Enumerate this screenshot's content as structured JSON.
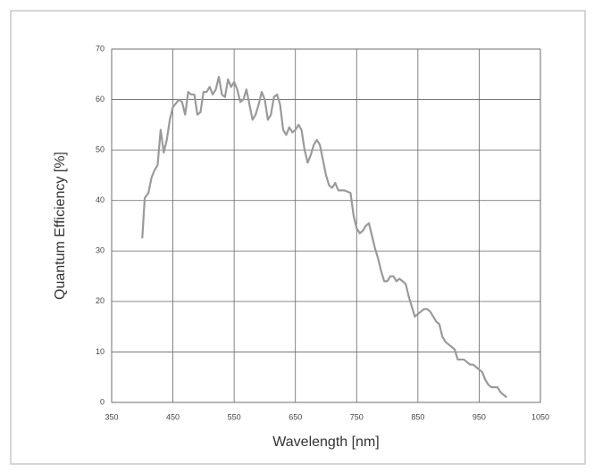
{
  "chart_data": {
    "type": "line",
    "xlabel": "Wavelength [nm]",
    "ylabel": "Quantum Efficiency [%]",
    "xlim": [
      350,
      1050
    ],
    "xticks": [
      350,
      450,
      550,
      650,
      750,
      850,
      950,
      1050
    ],
    "ylim": [
      0,
      70
    ],
    "yticks": [
      0,
      10,
      20,
      30,
      40,
      50,
      60,
      70
    ],
    "grid": true,
    "series": [
      {
        "color": "#9a9a9a",
        "x": [
          400,
          404,
          410,
          415,
          420,
          425,
          430,
          435,
          440,
          445,
          450,
          460,
          465,
          470,
          475,
          480,
          485,
          490,
          495,
          500,
          505,
          510,
          515,
          520,
          525,
          530,
          535,
          540,
          545,
          550,
          555,
          560,
          565,
          570,
          575,
          580,
          585,
          590,
          595,
          600,
          605,
          610,
          615,
          620,
          625,
          630,
          635,
          640,
          645,
          650,
          655,
          660,
          665,
          670,
          675,
          680,
          685,
          690,
          695,
          700,
          705,
          710,
          715,
          720,
          730,
          740,
          745,
          750,
          755,
          760,
          765,
          770,
          775,
          780,
          785,
          790,
          795,
          800,
          805,
          810,
          815,
          820,
          825,
          830,
          835,
          840,
          845,
          850,
          855,
          860,
          865,
          870,
          875,
          880,
          885,
          890,
          895,
          900,
          905,
          910,
          915,
          920,
          925,
          930,
          935,
          940,
          945,
          950,
          955,
          960,
          965,
          970,
          975,
          980,
          985,
          990,
          995
        ],
        "values": [
          32.5,
          40.5,
          41.5,
          44.5,
          46,
          47,
          54,
          49.5,
          52,
          56,
          58.5,
          60,
          59.5,
          57,
          61.5,
          61,
          61,
          57,
          57.5,
          61.5,
          61.5,
          62.5,
          61,
          62,
          64.5,
          61,
          60.5,
          64,
          62.5,
          63.5,
          62,
          59.5,
          60,
          62,
          59,
          56,
          57,
          59,
          61.5,
          60,
          56,
          57,
          60.5,
          61,
          59,
          54,
          53,
          54.5,
          53.5,
          54,
          55,
          54,
          50,
          47.5,
          49,
          51,
          52,
          51,
          48,
          45,
          43,
          42.5,
          43.5,
          42,
          42,
          41.5,
          37,
          34.5,
          33.5,
          34,
          35,
          35.5,
          33,
          30.5,
          28.5,
          26,
          24,
          24,
          25,
          25,
          24,
          24.5,
          24,
          23.5,
          21,
          19,
          17,
          17.5,
          18,
          18.5,
          18.5,
          18,
          17,
          16,
          15.5,
          13,
          12,
          11.5,
          11,
          10.5,
          8.5,
          8.5,
          8.5,
          8,
          7.5,
          7.5,
          7,
          6.5,
          6,
          4.5,
          3.5,
          3,
          3,
          3,
          2,
          1.5,
          1
        ]
      }
    ]
  }
}
